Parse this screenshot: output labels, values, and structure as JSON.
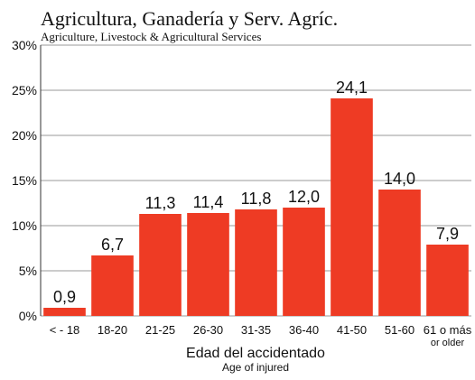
{
  "chart_data": {
    "type": "bar",
    "title": "Agricultura, Ganadería y Serv. Agríc.",
    "subtitle": "Agriculture, Livestock & Agricultural Services",
    "x_label": "Edad del accidentado",
    "x_label_sub": "Age of injured",
    "categories": [
      "< - 18",
      "18-20",
      "21-25",
      "26-30",
      "31-35",
      "36-40",
      "41-50",
      "51-60",
      "61 o más\nor older"
    ],
    "values": [
      0.9,
      6.7,
      11.3,
      11.4,
      11.8,
      12.0,
      24.1,
      14.0,
      7.9
    ],
    "value_labels": [
      "0,9",
      "6,7",
      "11,3",
      "11,4",
      "11,8",
      "12,0",
      "24,1",
      "14,0",
      "7,9"
    ],
    "color": "#ee3b24",
    "ylim": [
      0,
      30
    ],
    "yticks": [
      {
        "value": 0,
        "label": "0%"
      },
      {
        "value": 5,
        "label": "5%"
      },
      {
        "value": 10,
        "label": "10%"
      },
      {
        "value": 15,
        "label": "15%"
      },
      {
        "value": 20,
        "label": "20%"
      },
      {
        "value": 25,
        "label": "25%"
      },
      {
        "value": 30,
        "label": "30%"
      }
    ],
    "grid": true
  }
}
